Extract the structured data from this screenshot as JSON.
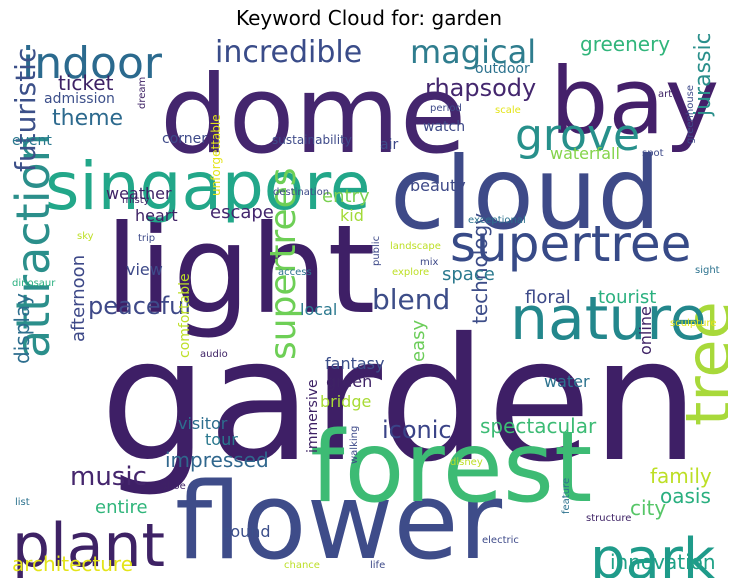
{
  "chart_data": {
    "type": "wordcloud",
    "title": "Keyword Cloud for: garden",
    "words": [
      {
        "text": "garden",
        "size": 170,
        "color": "#3e1f66"
      },
      {
        "text": "light",
        "size": 122,
        "color": "#3e1f66"
      },
      {
        "text": "dome",
        "size": 108,
        "color": "#44266e"
      },
      {
        "text": "flower",
        "size": 106,
        "color": "#3e4c89"
      },
      {
        "text": "cloud",
        "size": 100,
        "color": "#3e4a88"
      },
      {
        "text": "forest",
        "size": 98,
        "color": "#3dbb74"
      },
      {
        "text": "bay",
        "size": 92,
        "color": "#44206a"
      },
      {
        "text": "singapore",
        "size": 66,
        "color": "#22a789"
      },
      {
        "text": "tree",
        "size": 62,
        "color": "#a8d93a"
      },
      {
        "text": "nature",
        "size": 60,
        "color": "#23878c"
      },
      {
        "text": "plant",
        "size": 60,
        "color": "#3e2265"
      },
      {
        "text": "park",
        "size": 56,
        "color": "#1f9b8a"
      },
      {
        "text": "supertree",
        "size": 50,
        "color": "#374a87"
      },
      {
        "text": "attraction",
        "size": 46,
        "color": "#2b8f8b"
      },
      {
        "text": "grove",
        "size": 44,
        "color": "#27908b"
      },
      {
        "text": "indoor",
        "size": 44,
        "color": "#2b6a8e"
      },
      {
        "text": "supertrees",
        "size": 36,
        "color": "#6ecf56"
      },
      {
        "text": "magical",
        "size": 32,
        "color": "#2f7d8e"
      },
      {
        "text": "incredible",
        "size": 30,
        "color": "#3a4c89"
      },
      {
        "text": "futuristic",
        "size": 28,
        "color": "#3c5089"
      },
      {
        "text": "blend",
        "size": 28,
        "color": "#3d4d88"
      },
      {
        "text": "music",
        "size": 26,
        "color": "#45266d"
      },
      {
        "text": "peaceful",
        "size": 24,
        "color": "#3e4988"
      },
      {
        "text": "iconic",
        "size": 24,
        "color": "#3a4387"
      },
      {
        "text": "rhapsody",
        "size": 24,
        "color": "#44276e"
      },
      {
        "text": "theme",
        "size": 22,
        "color": "#2d6a8e"
      },
      {
        "text": "jurassic",
        "size": 22,
        "color": "#2a8f8b"
      },
      {
        "text": "spectacular",
        "size": 20,
        "color": "#3cbb74"
      },
      {
        "text": "architecture",
        "size": 20,
        "color": "#e3e419"
      },
      {
        "text": "innovation",
        "size": 20,
        "color": "#1fa187"
      },
      {
        "text": "greenery",
        "size": 20,
        "color": "#31b57b"
      },
      {
        "text": "display",
        "size": 20,
        "color": "#2d6e8e"
      },
      {
        "text": "technology",
        "size": 20,
        "color": "#3d4d88"
      },
      {
        "text": "impressed",
        "size": 20,
        "color": "#30678d"
      },
      {
        "text": "family",
        "size": 20,
        "color": "#bddf26"
      },
      {
        "text": "oasis",
        "size": 20,
        "color": "#29af7f"
      },
      {
        "text": "city",
        "size": 20,
        "color": "#56c667"
      },
      {
        "text": "ticket",
        "size": 20,
        "color": "#3e2265"
      },
      {
        "text": "afternoon",
        "size": 18,
        "color": "#3e4988"
      },
      {
        "text": "easy",
        "size": 18,
        "color": "#6ccd5a"
      },
      {
        "text": "entry",
        "size": 18,
        "color": "#7ad151"
      },
      {
        "text": "tourist",
        "size": 18,
        "color": "#2ab07f"
      },
      {
        "text": "space",
        "size": 18,
        "color": "#2b798e"
      },
      {
        "text": "floral",
        "size": 18,
        "color": "#3e4a89"
      },
      {
        "text": "entire",
        "size": 18,
        "color": "#30b57b"
      },
      {
        "text": "escape",
        "size": 18,
        "color": "#44276e"
      },
      {
        "text": "view",
        "size": 16,
        "color": "#3e4a89"
      },
      {
        "text": "weather",
        "size": 16,
        "color": "#3e2265"
      },
      {
        "text": "bridge",
        "size": 16,
        "color": "#a8db34"
      },
      {
        "text": "fantasy",
        "size": 16,
        "color": "#3c4f8a"
      },
      {
        "text": "green",
        "size": 16,
        "color": "#3e2265"
      },
      {
        "text": "tour",
        "size": 16,
        "color": "#2a788e"
      },
      {
        "text": "sound",
        "size": 16,
        "color": "#3c4f8a"
      },
      {
        "text": "beauty",
        "size": 16,
        "color": "#3e4988"
      },
      {
        "text": "waterfall",
        "size": 16,
        "color": "#84d44b"
      },
      {
        "text": "online",
        "size": 16,
        "color": "#3e2265"
      },
      {
        "text": "water",
        "size": 16,
        "color": "#2c728e"
      },
      {
        "text": "visitor",
        "size": 16,
        "color": "#2d6e8e"
      },
      {
        "text": "comfortable",
        "size": 14,
        "color": "#bddf26"
      },
      {
        "text": "immersive",
        "size": 14,
        "color": "#3e2265"
      },
      {
        "text": "local",
        "size": 16,
        "color": "#2a788e"
      },
      {
        "text": "kid",
        "size": 16,
        "color": "#a2da37"
      },
      {
        "text": "heart",
        "size": 16,
        "color": "#3e2265"
      },
      {
        "text": "corner",
        "size": 14,
        "color": "#3e4a89"
      },
      {
        "text": "outdoor",
        "size": 14,
        "color": "#2c728e"
      },
      {
        "text": "watch",
        "size": 14,
        "color": "#3e4988"
      },
      {
        "text": "event",
        "size": 14,
        "color": "#2a788e"
      },
      {
        "text": "admission",
        "size": 14,
        "color": "#3c4f8a"
      },
      {
        "text": "air",
        "size": 14,
        "color": "#3e4988"
      },
      {
        "text": "unforgettable",
        "size": 12,
        "color": "#e3e419"
      },
      {
        "text": "sustainability",
        "size": 12,
        "color": "#3e4a89"
      },
      {
        "text": "greenhouse",
        "size": 10,
        "color": "#3e4a89"
      },
      {
        "text": "sky",
        "size": 10,
        "color": "#bddf26"
      },
      {
        "text": "trip",
        "size": 10,
        "color": "#3e4a89"
      },
      {
        "text": "misty",
        "size": 10,
        "color": "#3e2265"
      },
      {
        "text": "dream",
        "size": 10,
        "color": "#3e2265"
      },
      {
        "text": "destination",
        "size": 10,
        "color": "#3e4a89"
      },
      {
        "text": "exceptional",
        "size": 10,
        "color": "#2c728e"
      },
      {
        "text": "landscape",
        "size": 10,
        "color": "#bddf26"
      },
      {
        "text": "public",
        "size": 10,
        "color": "#3e4a89"
      },
      {
        "text": "mix",
        "size": 10,
        "color": "#3e4a89"
      },
      {
        "text": "explore",
        "size": 10,
        "color": "#bddf26"
      },
      {
        "text": "access",
        "size": 10,
        "color": "#2c728e"
      },
      {
        "text": "dinosaur",
        "size": 10,
        "color": "#29af7f"
      },
      {
        "text": "audio",
        "size": 10,
        "color": "#3e2265"
      },
      {
        "text": "shoe",
        "size": 10,
        "color": "#3e2265"
      },
      {
        "text": "list",
        "size": 10,
        "color": "#2c728e"
      },
      {
        "text": "walking",
        "size": 10,
        "color": "#3e4a89"
      },
      {
        "text": "disney",
        "size": 10,
        "color": "#bddf26"
      },
      {
        "text": "electric",
        "size": 10,
        "color": "#3e4a89"
      },
      {
        "text": "feature",
        "size": 10,
        "color": "#2c728e"
      },
      {
        "text": "structure",
        "size": 10,
        "color": "#3e2265"
      },
      {
        "text": "chance",
        "size": 10,
        "color": "#bddf26"
      },
      {
        "text": "life",
        "size": 10,
        "color": "#3e4a89"
      },
      {
        "text": "sculpture",
        "size": 10,
        "color": "#e3e419"
      },
      {
        "text": "sight",
        "size": 10,
        "color": "#2c728e"
      },
      {
        "text": "spot",
        "size": 10,
        "color": "#3e4a89"
      },
      {
        "text": "art",
        "size": 10,
        "color": "#3e2265"
      },
      {
        "text": "scale",
        "size": 10,
        "color": "#e3e419"
      },
      {
        "text": "period",
        "size": 10,
        "color": "#3e4a89"
      }
    ]
  }
}
